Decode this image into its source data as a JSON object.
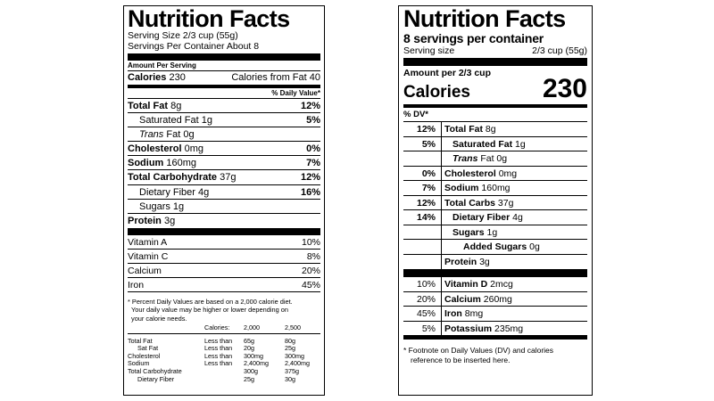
{
  "old_label": {
    "title": "Nutrition Facts",
    "serving_size": "Serving Size 2/3 cup (55g)",
    "servings": "Servings Per Container About 8",
    "amount_per_serving": "Amount Per Serving",
    "calories_label": "Calories",
    "calories_value": "230",
    "calories_fat": "Calories from Fat 40",
    "dv_header": "% Daily Value*",
    "nutrients": [
      {
        "name": "Total Fat",
        "amount": "8g",
        "dv": "12%"
      },
      {
        "name": "Saturated Fat",
        "amount": "1g",
        "dv": "5%"
      },
      {
        "name": "Trans",
        "amount": "Fat 0g",
        "dv": ""
      },
      {
        "name": "Cholesterol",
        "amount": "0mg",
        "dv": "0%"
      },
      {
        "name": "Sodium",
        "amount": "160mg",
        "dv": "7%"
      },
      {
        "name": "Total Carbohydrate",
        "amount": "37g",
        "dv": "12%"
      },
      {
        "name": "Dietary Fiber",
        "amount": "4g",
        "dv": "16%"
      },
      {
        "name": "Sugars",
        "amount": "1g",
        "dv": ""
      },
      {
        "name": "Protein",
        "amount": "3g",
        "dv": ""
      }
    ],
    "vitamins": [
      {
        "name": "Vitamin A",
        "dv": "10%"
      },
      {
        "name": "Vitamin C",
        "dv": "8%"
      },
      {
        "name": "Calcium",
        "dv": "20%"
      },
      {
        "name": "Iron",
        "dv": "45%"
      }
    ],
    "footnote_1": "* Percent Daily Values are based on a 2,000 calorie diet.",
    "footnote_2": "Your daily value may be higher or lower depending on",
    "footnote_3": "your calorie needs.",
    "ref_header": {
      "calories": "Calories:",
      "c2000": "2,000",
      "c2500": "2,500"
    },
    "ref_rows": [
      {
        "name": "Total Fat",
        "qual": "Less than",
        "a": "65g",
        "b": "80g"
      },
      {
        "name": "Sat Fat",
        "qual": "Less than",
        "a": "20g",
        "b": "25g"
      },
      {
        "name": "Cholesterol",
        "qual": "Less than",
        "a": "300mg",
        "b": "300mg"
      },
      {
        "name": "Sodium",
        "qual": "Less than",
        "a": "2,400mg",
        "b": "2,400mg"
      },
      {
        "name": "Total Carbohydrate",
        "qual": "",
        "a": "300g",
        "b": "375g"
      },
      {
        "name": "Dietary Fiber",
        "qual": "",
        "a": "25g",
        "b": "30g"
      }
    ]
  },
  "new_label": {
    "title": "Nutrition Facts",
    "servings": "8 servings per container",
    "serving_size_label": "Serving size",
    "serving_size_value": "2/3 cup (55g)",
    "amount_label": "Amount per 2/3 cup",
    "calories_label": "Calories",
    "calories_value": "230",
    "dv_header": "% DV*",
    "nutrients": [
      {
        "dv": "12%",
        "name": "Total Fat",
        "amount": "8g"
      },
      {
        "dv": "5%",
        "name": "Saturated Fat",
        "amount": "1g"
      },
      {
        "dv": "",
        "name": "Trans",
        "amount": "Fat 0g"
      },
      {
        "dv": "0%",
        "name": "Cholesterol",
        "amount": "0mg"
      },
      {
        "dv": "7%",
        "name": "Sodium",
        "amount": "160mg"
      },
      {
        "dv": "12%",
        "name": "Total Carbs",
        "amount": "37g"
      },
      {
        "dv": "14%",
        "name": "Dietary Fiber",
        "amount": "4g"
      },
      {
        "dv": "",
        "name": "Sugars",
        "amount": "1g"
      },
      {
        "dv": "",
        "name": "Added Sugars",
        "amount": "0g"
      },
      {
        "dv": "",
        "name": "Protein",
        "amount": "3g"
      }
    ],
    "vitamins": [
      {
        "dv": "10%",
        "name": "Vitamin D",
        "amount": "2mcg"
      },
      {
        "dv": "20%",
        "name": "Calcium",
        "amount": "260mg"
      },
      {
        "dv": "45%",
        "name": "Iron",
        "amount": "8mg"
      },
      {
        "dv": "5%",
        "name": "Potassium",
        "amount": "235mg"
      }
    ],
    "footnote_1": "* Footnote on Daily Values (DV) and calories",
    "footnote_2": "reference to be inserted here."
  }
}
